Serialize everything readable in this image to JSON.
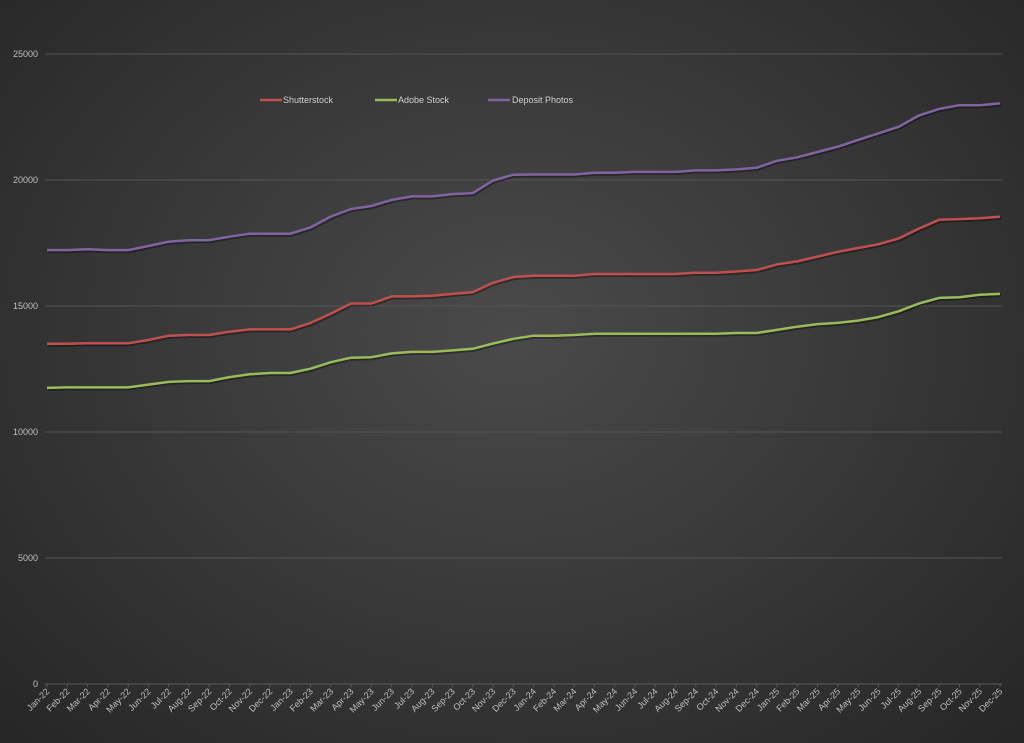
{
  "chart_data": {
    "type": "line",
    "title": "",
    "xlabel": "",
    "ylabel": "",
    "ylim": [
      0,
      25000
    ],
    "yticks": [
      0,
      5000,
      10000,
      15000,
      20000,
      25000
    ],
    "grid": true,
    "legend_position": "top",
    "categories": [
      "Jan-22",
      "Feb-22",
      "Mar-22",
      "Apr-22",
      "May-22",
      "Jun-22",
      "Jul-22",
      "Aug-22",
      "Sep-22",
      "Oct-22",
      "Nov-22",
      "Dec-22",
      "Jan-23",
      "Feb-23",
      "Mar-23",
      "Apr-23",
      "May-23",
      "Jun-23",
      "Jul-23",
      "Aug-23",
      "Sep-23",
      "Oct-23",
      "Nov-23",
      "Dec-23",
      "Jan-24",
      "Feb-24",
      "Mar-24",
      "Apr-24",
      "May-24",
      "Jun-24",
      "Jul-24",
      "Aug-24",
      "Sep-24",
      "Oct-24",
      "Nov-24",
      "Dec-24",
      "Jan-25",
      "Feb-25",
      "Mar-25",
      "Apr-25",
      "May-25",
      "Jun-25",
      "Jul-25",
      "Aug-25",
      "Sep-25",
      "Oct-25",
      "Nov-25",
      "Dec-25"
    ],
    "series": [
      {
        "name": "Shutterstock",
        "color": "#c0504d",
        "values": [
          13500,
          13500,
          13520,
          13520,
          13520,
          13650,
          13820,
          13850,
          13850,
          13980,
          14070,
          14070,
          14070,
          14330,
          14700,
          15100,
          15100,
          15380,
          15380,
          15410,
          15480,
          15550,
          15920,
          16150,
          16200,
          16200,
          16200,
          16270,
          16270,
          16270,
          16270,
          16270,
          16320,
          16320,
          16370,
          16430,
          16650,
          16770,
          16960,
          17150,
          17300,
          17450,
          17680,
          18070,
          18420,
          18450,
          18480,
          18540
        ]
      },
      {
        "name": "Adobe Stock",
        "color": "#9bbb59",
        "values": [
          11750,
          11770,
          11770,
          11770,
          11770,
          11880,
          11990,
          12020,
          12020,
          12180,
          12290,
          12340,
          12340,
          12510,
          12770,
          12950,
          12970,
          13120,
          13180,
          13180,
          13240,
          13300,
          13510,
          13700,
          13820,
          13820,
          13850,
          13900,
          13900,
          13900,
          13900,
          13900,
          13900,
          13900,
          13930,
          13930,
          14050,
          14180,
          14280,
          14330,
          14420,
          14560,
          14790,
          15100,
          15320,
          15350,
          15450,
          15480
        ]
      },
      {
        "name": "Deposit Photos",
        "color": "#8064a2",
        "values": [
          17220,
          17220,
          17250,
          17220,
          17220,
          17380,
          17550,
          17610,
          17610,
          17750,
          17870,
          17870,
          17870,
          18120,
          18550,
          18850,
          18970,
          19210,
          19350,
          19350,
          19440,
          19480,
          19980,
          20210,
          20220,
          20220,
          20220,
          20290,
          20290,
          20320,
          20320,
          20320,
          20380,
          20380,
          20420,
          20490,
          20760,
          20900,
          21110,
          21320,
          21590,
          21850,
          22110,
          22560,
          22820,
          22970,
          22970,
          23040
        ]
      }
    ]
  },
  "legend": [
    {
      "label": "Shutterstock",
      "color": "#c0504d"
    },
    {
      "label": "Adobe Stock",
      "color": "#9bbb59"
    },
    {
      "label": "Deposit Photos",
      "color": "#8064a2"
    }
  ]
}
